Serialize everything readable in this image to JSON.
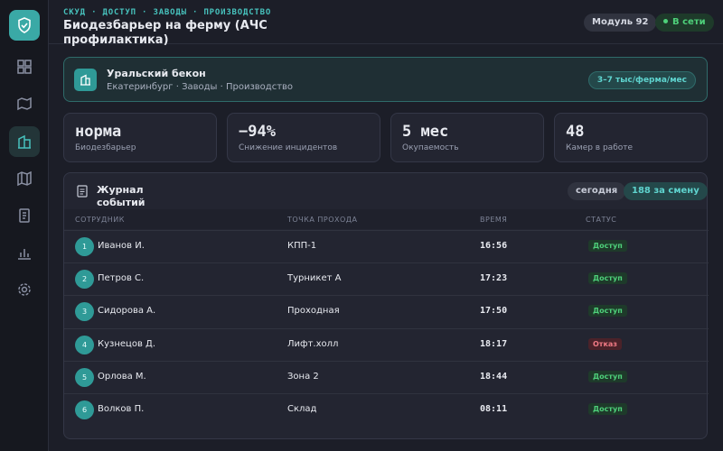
{
  "header": {
    "breadcrumb": "СКУД · ДОСТУП · ЗАВОДЫ · ПРОИЗВОДСТВО",
    "title": "Биодезбарьер на ферму (АЧС профилактика)",
    "module": "Модуль 92",
    "status": "В сети"
  },
  "banner": {
    "name": "Уральский бекон",
    "subtitle": "Екатеринбург · Заводы · Производство",
    "price": "3–7 тыс/ферма/мес"
  },
  "kpis": [
    {
      "value": "норма",
      "label": "Биодезбарьер"
    },
    {
      "value": "−94%",
      "label": "Снижение инцидентов"
    },
    {
      "value": "5 мес",
      "label": "Окупаемость"
    },
    {
      "value": "48",
      "label": "Камер в работе"
    }
  ],
  "log": {
    "title": "Журнал событий",
    "period": "сегодня",
    "count": "188 за смену",
    "columns": [
      "СОТРУДНИК",
      "ТОЧКА ПРОХОДА",
      "ВРЕМЯ",
      "СТАТУС"
    ],
    "rows": [
      [
        "1",
        "Иванов И.",
        "КПП-1",
        "16:56",
        "Доступ"
      ],
      [
        "2",
        "Петров С.",
        "Турникет А",
        "17:23",
        "Доступ"
      ],
      [
        "3",
        "Сидорова А.",
        "Проходная",
        "17:50",
        "Доступ"
      ],
      [
        "4",
        "Кузнецов Д.",
        "Лифт.холл",
        "18:17",
        "Отказ"
      ],
      [
        "5",
        "Орлова М.",
        "Зона 2",
        "18:44",
        "Доступ"
      ],
      [
        "6",
        "Волков П.",
        "Склад",
        "08:11",
        "Доступ"
      ]
    ]
  }
}
